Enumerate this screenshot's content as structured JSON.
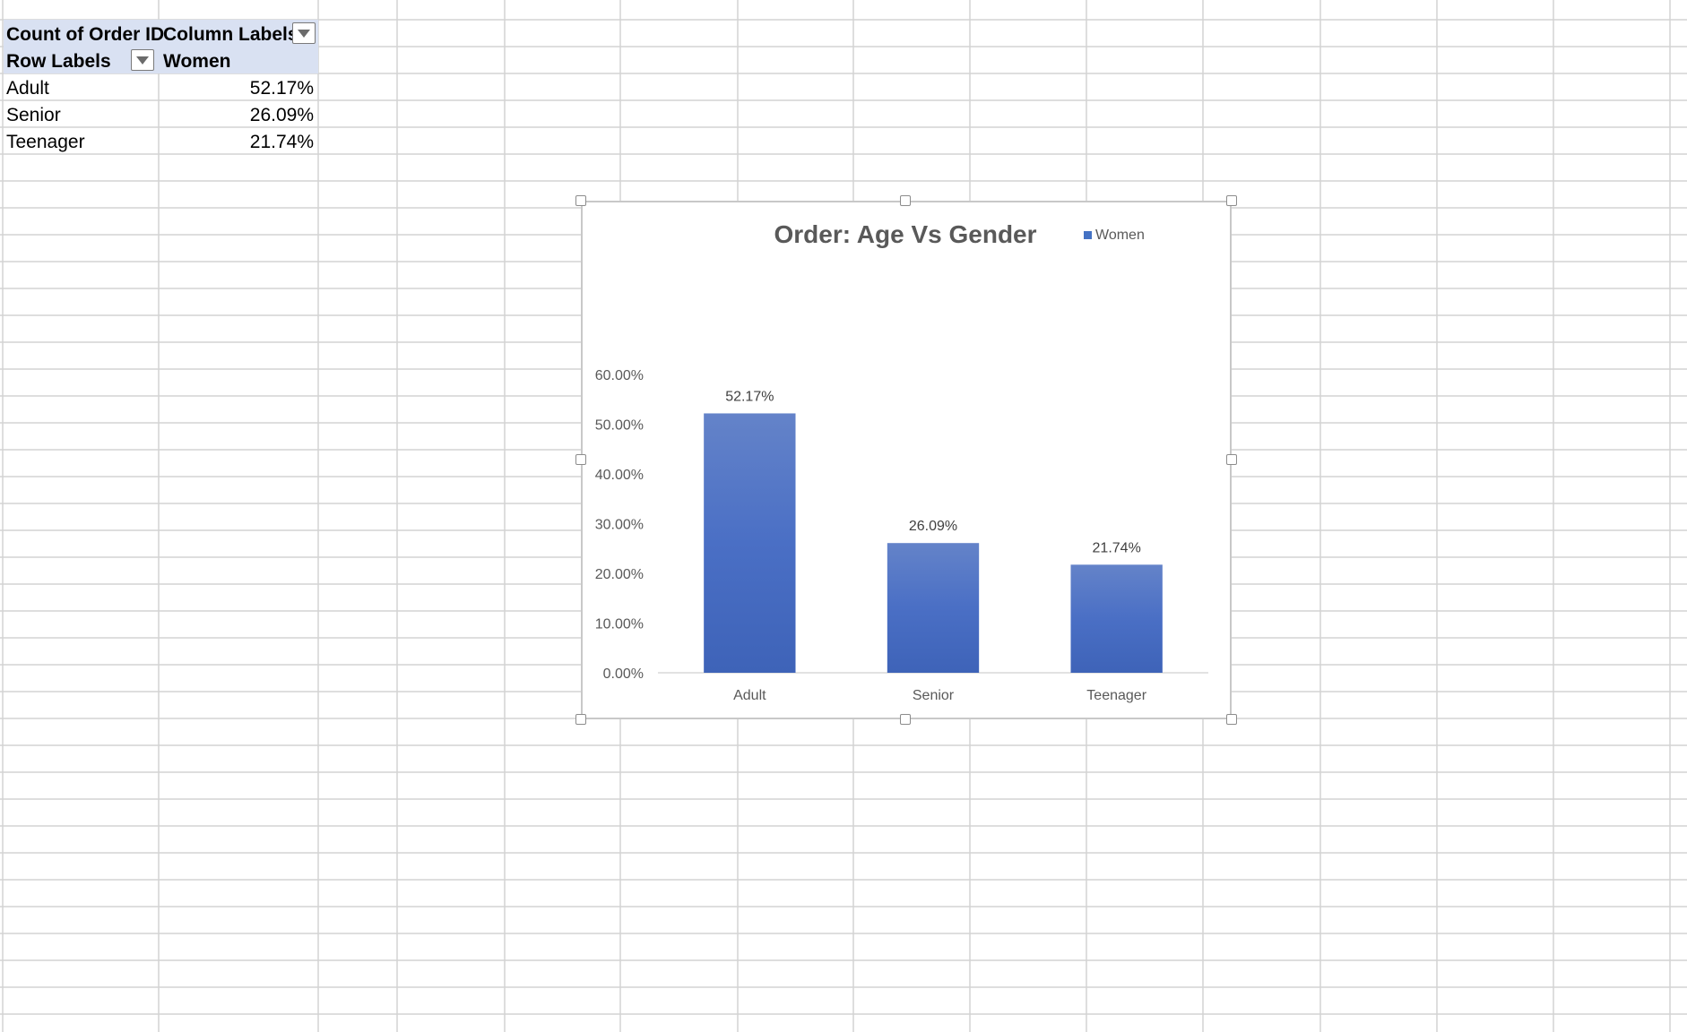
{
  "pivot": {
    "corner_label": "Count of Order ID",
    "column_labels": "Column Labels",
    "row_labels": "Row Labels",
    "series_header": "Women",
    "rows": [
      {
        "label": "Adult",
        "value": "52.17%"
      },
      {
        "label": "Senior",
        "value": "26.09%"
      },
      {
        "label": "Teenager",
        "value": "21.74%"
      }
    ],
    "filter_icon": "dropdown-arrow-icon"
  },
  "chart_data": {
    "type": "bar",
    "title": "Order: Age  Vs Gender",
    "categories": [
      "Adult",
      "Senior",
      "Teenager"
    ],
    "series": [
      {
        "name": "Women",
        "values": [
          52.17,
          26.09,
          21.74
        ],
        "labels": [
          "52.17%",
          "26.09%",
          "21.74%"
        ],
        "color": "#4472c4"
      }
    ],
    "ylim": [
      0,
      60
    ],
    "yticks": [
      0,
      10,
      20,
      30,
      40,
      50,
      60
    ],
    "ytick_labels": [
      "0.00%",
      "10.00%",
      "20.00%",
      "30.00%",
      "40.00%",
      "50.00%",
      "60.00%"
    ],
    "legend_position": "top-right",
    "grid": false
  },
  "colors": {
    "header_fill": "#d9e1f2",
    "gridline": "#d4d4d4",
    "bar": "#4472c4"
  }
}
